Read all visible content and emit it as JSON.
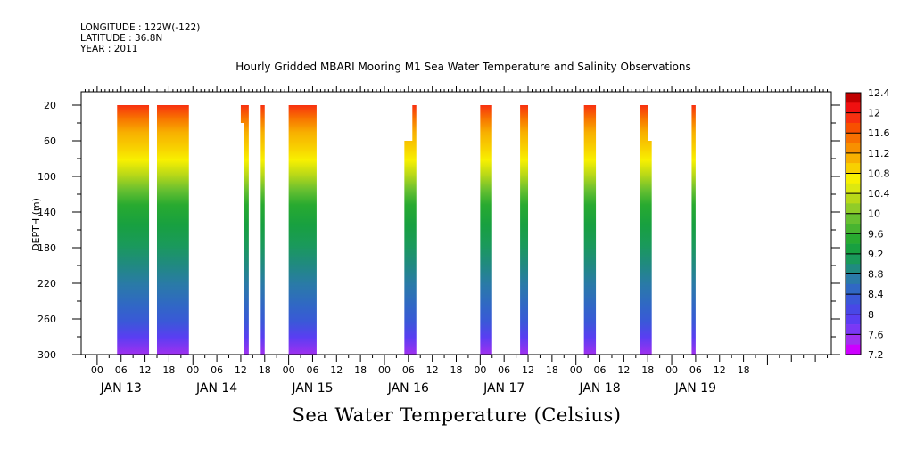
{
  "header": {
    "longitude": "LONGITUDE : 122W(-122)",
    "latitude": "LATITUDE : 36.8N",
    "year": "YEAR : 2011"
  },
  "chart_data": {
    "type": "heatmap",
    "title": "Hourly Gridded MBARI Mooring M1 Sea Water Temperature and Salinity Observations",
    "footer_title": "Sea Water Temperature (Celsius)",
    "ylabel": "DEPTH (m)",
    "ylim": [
      300,
      5
    ],
    "y_ticks": [
      20,
      60,
      100,
      140,
      180,
      220,
      260,
      300
    ],
    "x_hour_ticks": [
      "00",
      "06",
      "12",
      "18",
      "00",
      "06",
      "12",
      "18",
      "00",
      "06",
      "12",
      "18",
      "00",
      "06",
      "12",
      "18",
      "00",
      "06",
      "12",
      "18",
      "00",
      "06",
      "12",
      "18",
      "00",
      "06",
      "12",
      "18"
    ],
    "x_day_labels": [
      "JAN 13",
      "JAN 14",
      "JAN 15",
      "JAN 16",
      "JAN 17",
      "JAN 18",
      "JAN 19"
    ],
    "x_range_hours": [
      -4,
      184
    ],
    "colorbar": {
      "levels": [
        7.2,
        7.4,
        7.6,
        7.8,
        8.0,
        8.2,
        8.4,
        8.6,
        8.8,
        9.0,
        9.2,
        9.4,
        9.6,
        9.8,
        10.0,
        10.2,
        10.4,
        10.6,
        10.8,
        11.0,
        11.2,
        11.4,
        11.6,
        11.8,
        12.0,
        12.2,
        12.4
      ],
      "labels": [
        "7.2",
        "7.6",
        "8",
        "8.4",
        "8.8",
        "9.2",
        "9.6",
        "10",
        "10.4",
        "10.8",
        "11.2",
        "11.6",
        "12",
        "12.4"
      ],
      "colors": [
        "#cc00ff",
        "#a030f0",
        "#7a38f5",
        "#5a3ef2",
        "#4848e6",
        "#3a58d8",
        "#3068c4",
        "#2a7aa8",
        "#208a80",
        "#1a9a5a",
        "#18a040",
        "#28aa30",
        "#48b430",
        "#68c030",
        "#90cc28",
        "#b8d818",
        "#dce810",
        "#f8f000",
        "#f8d000",
        "#f8b000",
        "#f89000",
        "#f87000",
        "#f85000",
        "#f83010",
        "#f01010",
        "#c00000"
      ]
    },
    "segments": [
      {
        "start": 5,
        "end": 13,
        "top": 20
      },
      {
        "start": 15,
        "end": 23,
        "top": 20
      },
      {
        "start": 36,
        "end": 38,
        "top": 20,
        "step_depth": 40
      },
      {
        "start": 41,
        "end": 42,
        "top": 20
      },
      {
        "start": 48,
        "end": 55,
        "top": 20
      },
      {
        "start": 77,
        "end": 80,
        "top": 60,
        "step_start": 79,
        "step_top": 20
      },
      {
        "start": 96,
        "end": 99,
        "top": 20
      },
      {
        "start": 106,
        "end": 108,
        "top": 20
      },
      {
        "start": 122,
        "end": 125,
        "top": 20
      },
      {
        "start": 136,
        "end": 139,
        "top": 20,
        "step_start": 138,
        "step_top": 60
      },
      {
        "start": 149,
        "end": 150,
        "top": 20
      }
    ]
  }
}
